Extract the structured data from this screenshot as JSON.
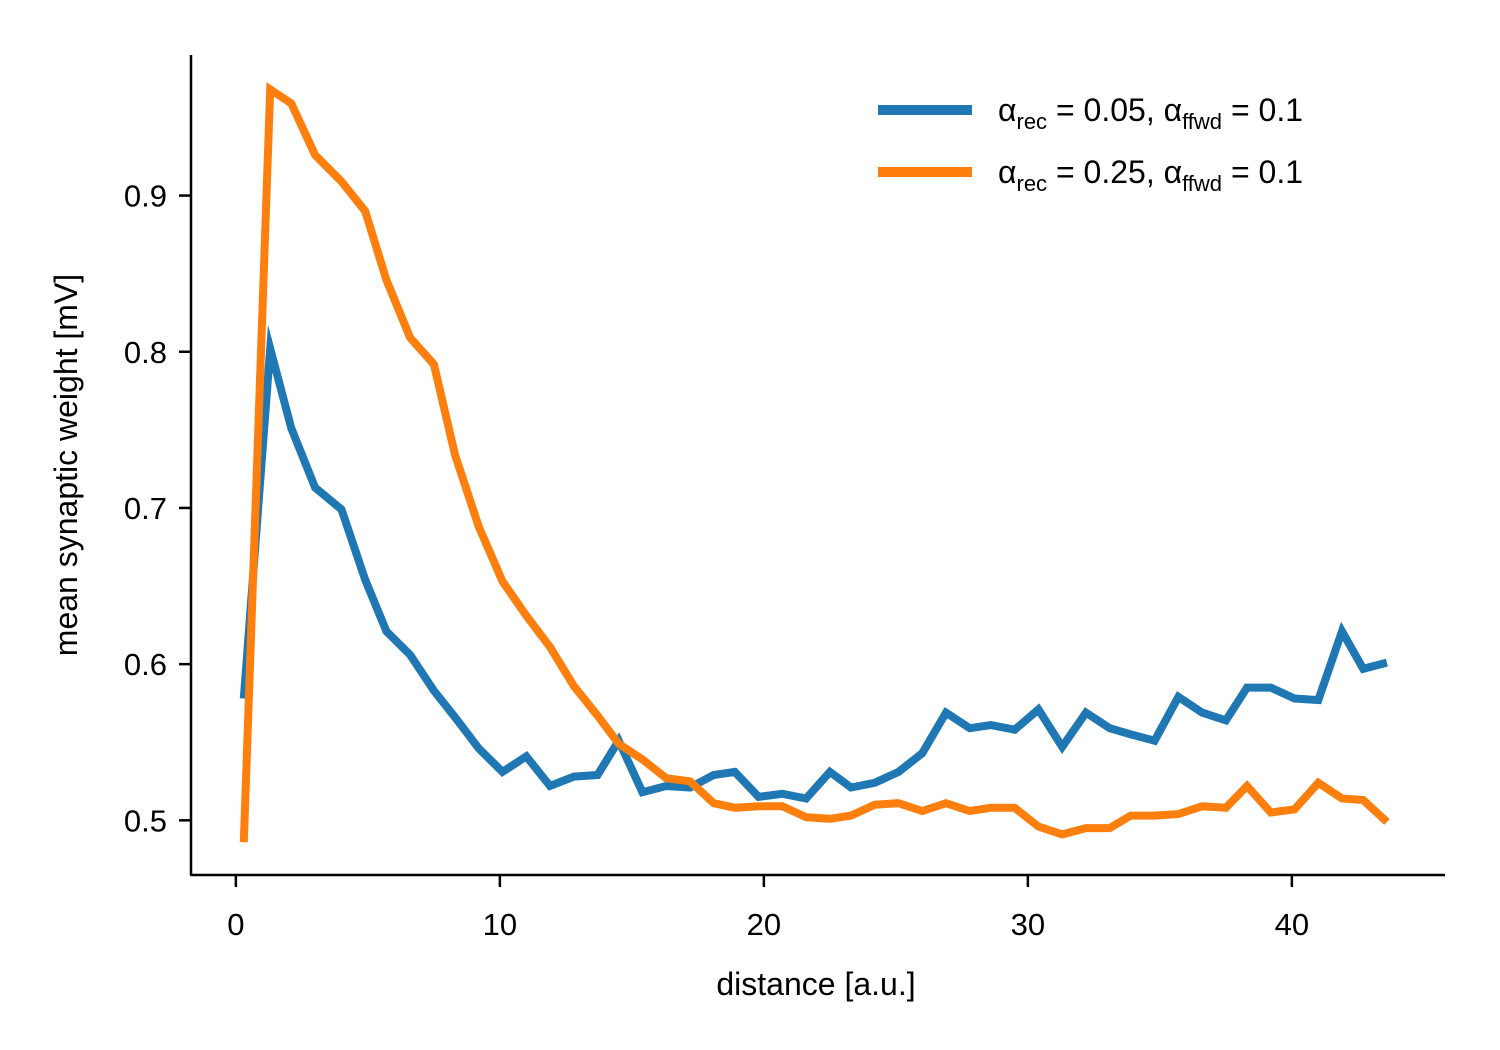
{
  "chart_data": {
    "type": "line",
    "title": "",
    "xlabel": "distance [a.u.]",
    "ylabel": "mean synaptic weight [mV]",
    "xlim": [
      -1.7,
      45.8
    ],
    "ylim": [
      0.465,
      0.99
    ],
    "xticks": [
      0,
      10,
      20,
      30,
      40
    ],
    "yticks": [
      0.5,
      0.6,
      0.7,
      0.8,
      0.9
    ],
    "xtick_labels": [
      "0",
      "10",
      "20",
      "30",
      "40"
    ],
    "ytick_labels": [
      "0.5",
      "0.6",
      "0.7",
      "0.8",
      "0.9"
    ],
    "grid": false,
    "legend_position": "top-right",
    "x": [
      0.3,
      1.3,
      2.1,
      3.0,
      4.0,
      4.9,
      5.7,
      6.6,
      7.5,
      8.3,
      9.2,
      10.1,
      11.0,
      11.9,
      12.8,
      13.7,
      14.5,
      15.4,
      16.3,
      17.2,
      18.1,
      18.9,
      19.8,
      20.7,
      21.6,
      22.5,
      23.3,
      24.2,
      25.1,
      26.0,
      26.9,
      27.8,
      28.6,
      29.5,
      30.4,
      31.3,
      32.2,
      33.1,
      33.9,
      34.8,
      35.7,
      36.6,
      37.5,
      38.3,
      39.2,
      40.1,
      41.0,
      41.9,
      42.7,
      43.6
    ],
    "series": [
      {
        "name_parts": {
          "sym1": "α",
          "sub1": "rec",
          "mid": " = 0.05, ",
          "sym2": "α",
          "sub2": "ffwd",
          "end": " = 0.1"
        },
        "color": "#1f77b4",
        "values": [
          0.578,
          0.802,
          0.751,
          0.713,
          0.699,
          0.654,
          0.621,
          0.606,
          0.583,
          0.566,
          0.546,
          0.531,
          0.541,
          0.522,
          0.528,
          0.529,
          0.551,
          0.518,
          0.522,
          0.521,
          0.529,
          0.531,
          0.515,
          0.517,
          0.514,
          0.531,
          0.521,
          0.524,
          0.531,
          0.543,
          0.569,
          0.559,
          0.561,
          0.558,
          0.571,
          0.547,
          0.569,
          0.559,
          0.555,
          0.551,
          0.579,
          0.569,
          0.564,
          0.585,
          0.585,
          0.578,
          0.577,
          0.621,
          0.597,
          0.601
        ]
      },
      {
        "name_parts": {
          "sym1": "α",
          "sub1": "rec",
          "mid": " = 0.25, ",
          "sym2": "α",
          "sub2": "ffwd",
          "end": " = 0.1"
        },
        "color": "#ff7f0e",
        "values": [
          0.486,
          0.968,
          0.959,
          0.926,
          0.909,
          0.89,
          0.846,
          0.809,
          0.792,
          0.734,
          0.688,
          0.653,
          0.631,
          0.611,
          0.586,
          0.567,
          0.549,
          0.539,
          0.527,
          0.525,
          0.511,
          0.508,
          0.509,
          0.509,
          0.502,
          0.501,
          0.503,
          0.51,
          0.511,
          0.506,
          0.511,
          0.506,
          0.508,
          0.508,
          0.496,
          0.491,
          0.495,
          0.495,
          0.503,
          0.503,
          0.504,
          0.509,
          0.508,
          0.522,
          0.505,
          0.507,
          0.524,
          0.514,
          0.513,
          0.499
        ]
      }
    ]
  }
}
